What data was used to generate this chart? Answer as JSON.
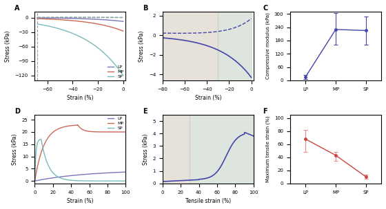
{
  "fig_width": 5.6,
  "fig_height": 3.04,
  "dpi": 100,
  "panel_A": {
    "label": "A",
    "xlim": [
      -70,
      2
    ],
    "ylim": [
      -130,
      12
    ],
    "xlabel": "Strain (%)",
    "ylabel": "Stress (kPa)",
    "xticks": [
      -60,
      -40,
      -20,
      0
    ],
    "yticks": [
      -120,
      -90,
      -60,
      -30,
      0
    ],
    "lp_color": "#7777bb",
    "mp_color": "#cc6655",
    "sp_color": "#77bbbb",
    "legend_labels": [
      "LP",
      "MP",
      "SP"
    ]
  },
  "panel_B": {
    "label": "B",
    "xlim": [
      -80,
      2
    ],
    "ylim": [
      -4.6,
      2.4
    ],
    "xlabel": "Strain (%)",
    "ylabel": "Stress (kPa)",
    "xticks": [
      -80,
      -60,
      -40,
      -20,
      0
    ],
    "yticks": [
      -4,
      -2,
      0,
      2
    ],
    "color": "#4444aa",
    "bg_left_color": "#d8d0c0",
    "bg_right_color": "#c8d4c8",
    "bg_split": -30
  },
  "panel_C": {
    "label": "C",
    "xlim_cats": [
      "LP",
      "MP",
      "SP"
    ],
    "ylim": [
      0,
      310
    ],
    "ylabel": "Compressive modulus (kPa)",
    "yticks": [
      0,
      60,
      120,
      180,
      240,
      300
    ],
    "color": "#4444aa",
    "values": [
      15,
      230,
      225
    ],
    "errors_lo": [
      8,
      70,
      65
    ],
    "errors_hi": [
      10,
      75,
      65
    ]
  },
  "panel_D": {
    "label": "D",
    "xlim": [
      0,
      100
    ],
    "ylim": [
      -1,
      27
    ],
    "xlabel": "Strain (%)",
    "ylabel": "Stress (kPa)",
    "xticks": [
      0,
      20,
      40,
      60,
      80,
      100
    ],
    "yticks": [
      0,
      5,
      10,
      15,
      20,
      25
    ],
    "lp_color": "#7777bb",
    "mp_color": "#cc6655",
    "sp_color": "#77bbbb",
    "legend_labels": [
      "LP",
      "MP",
      "SP"
    ]
  },
  "panel_E": {
    "label": "E",
    "xlim": [
      0,
      100
    ],
    "ylim": [
      0,
      5.5
    ],
    "xlabel": "Tensile strain (%)",
    "ylabel": "Stress (kPa)",
    "xticks": [
      0,
      20,
      40,
      60,
      80,
      100
    ],
    "yticks": [
      0,
      1,
      2,
      3,
      4,
      5
    ],
    "color": "#4444aa",
    "bg_left_color": "#d8d0c0",
    "bg_right_color": "#c8d4c8",
    "bg_split": 30
  },
  "panel_F": {
    "label": "F",
    "xlim_cats": [
      "LP",
      "MP",
      "SP"
    ],
    "ylim": [
      0,
      105
    ],
    "ylabel": "Maximum tensile strain (%)",
    "yticks": [
      0,
      20,
      40,
      60,
      80,
      100
    ],
    "color": "#cc4444",
    "values": [
      68,
      43,
      10
    ],
    "errors_lo": [
      20,
      8,
      3
    ],
    "errors_hi": [
      14,
      5,
      3
    ]
  }
}
